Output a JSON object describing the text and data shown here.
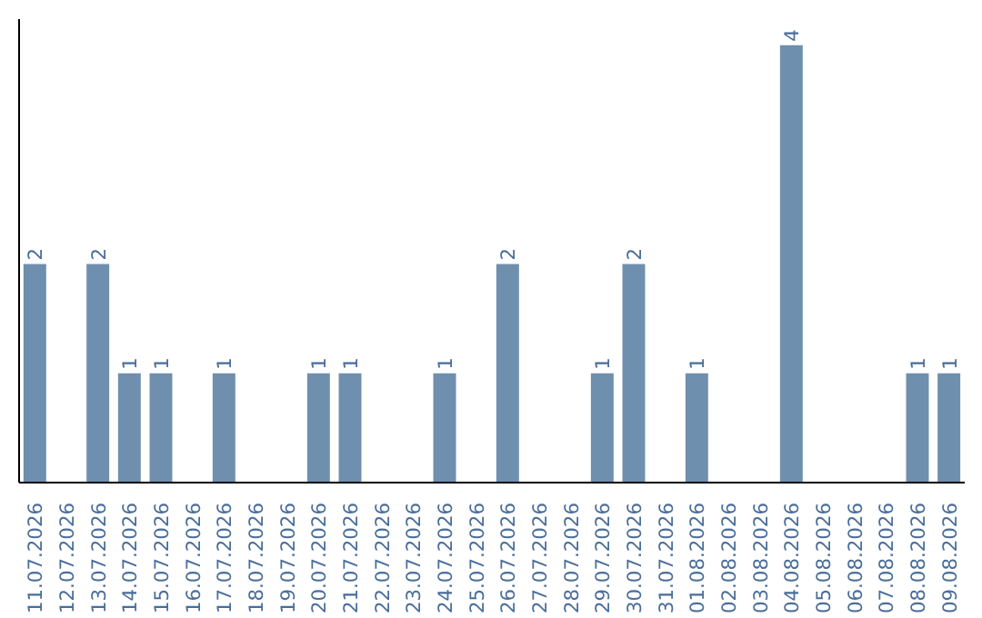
{
  "chart_data": {
    "type": "bar",
    "categories": [
      "11.07.2026",
      "12.07.2026",
      "13.07.2026",
      "14.07.2026",
      "15.07.2026",
      "16.07.2026",
      "17.07.2026",
      "18.07.2026",
      "19.07.2026",
      "20.07.2026",
      "21.07.2026",
      "22.07.2026",
      "23.07.2026",
      "24.07.2026",
      "25.07.2026",
      "26.07.2026",
      "27.07.2026",
      "28.07.2026",
      "29.07.2026",
      "30.07.2026",
      "31.07.2026",
      "01.08.2026",
      "02.08.2026",
      "03.08.2026",
      "04.08.2026",
      "05.08.2026",
      "06.08.2026",
      "07.08.2026",
      "08.08.2026",
      "09.08.2026"
    ],
    "values": [
      2,
      0,
      2,
      1,
      1,
      0,
      1,
      0,
      0,
      1,
      1,
      0,
      0,
      1,
      0,
      2,
      0,
      0,
      1,
      2,
      0,
      1,
      0,
      0,
      4,
      0,
      0,
      0,
      1,
      1
    ],
    "value_labels": [
      "2",
      null,
      "2",
      "1",
      "1",
      null,
      "1",
      null,
      null,
      "1",
      "1",
      null,
      null,
      "1",
      null,
      "2",
      null,
      null,
      "1",
      "2",
      null,
      "1",
      null,
      null,
      "4",
      null,
      null,
      null,
      "1",
      "1"
    ],
    "color": "#6f8fae",
    "grid": false,
    "tick_labels": "x"
  }
}
